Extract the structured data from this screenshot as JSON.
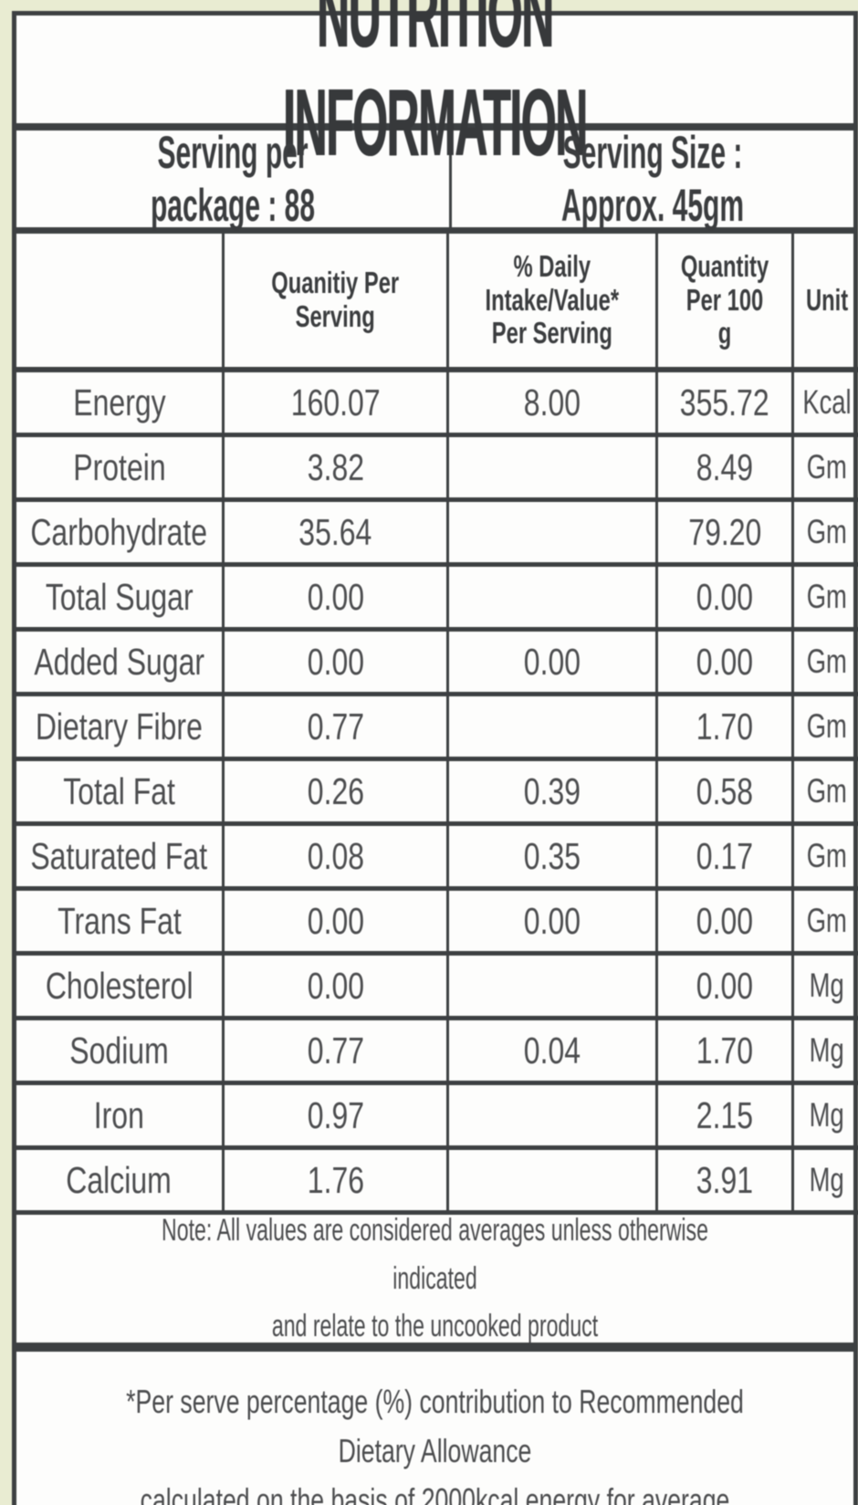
{
  "title": "NUTRITION INFORMATION",
  "serving": {
    "per_package": "Serving per package : 88",
    "size": "Serving Size : Approx. 45gm"
  },
  "table": {
    "headers": [
      "",
      "Quanitiy Per\nServing",
      "% Daily\nIntake/Value*\nPer Serving",
      "Quantity\nPer 100 g",
      "Unit"
    ],
    "rows": [
      {
        "nutrient": "Energy",
        "per_serving": "160.07",
        "daily_value": "8.00",
        "per_100g": "355.72",
        "unit": "Kcal"
      },
      {
        "nutrient": "Protein",
        "per_serving": "3.82",
        "daily_value": "",
        "per_100g": "8.49",
        "unit": "Gm"
      },
      {
        "nutrient": "Carbohydrate",
        "per_serving": "35.64",
        "daily_value": "",
        "per_100g": "79.20",
        "unit": "Gm"
      },
      {
        "nutrient": "Total Sugar",
        "per_serving": "0.00",
        "daily_value": "",
        "per_100g": "0.00",
        "unit": "Gm"
      },
      {
        "nutrient": "Added Sugar",
        "per_serving": "0.00",
        "daily_value": "0.00",
        "per_100g": "0.00",
        "unit": "Gm"
      },
      {
        "nutrient": "Dietary Fibre",
        "per_serving": "0.77",
        "daily_value": "",
        "per_100g": "1.70",
        "unit": "Gm"
      },
      {
        "nutrient": "Total Fat",
        "per_serving": "0.26",
        "daily_value": "0.39",
        "per_100g": "0.58",
        "unit": "Gm"
      },
      {
        "nutrient": "Saturated Fat",
        "per_serving": "0.08",
        "daily_value": "0.35",
        "per_100g": "0.17",
        "unit": "Gm"
      },
      {
        "nutrient": "Trans Fat",
        "per_serving": "0.00",
        "daily_value": "0.00",
        "per_100g": "0.00",
        "unit": "Gm"
      },
      {
        "nutrient": "Cholesterol",
        "per_serving": "0.00",
        "daily_value": "",
        "per_100g": "0.00",
        "unit": "Mg"
      },
      {
        "nutrient": "Sodium",
        "per_serving": "0.77",
        "daily_value": "0.04",
        "per_100g": "1.70",
        "unit": "Mg"
      },
      {
        "nutrient": "Iron",
        "per_serving": "0.97",
        "daily_value": "",
        "per_100g": "2.15",
        "unit": "Mg"
      },
      {
        "nutrient": "Calcium",
        "per_serving": "1.76",
        "daily_value": "",
        "per_100g": "3.91",
        "unit": "Mg"
      }
    ]
  },
  "notes": {
    "note": "Note: All values are considered averages unless otherwise indicated\nand relate to the uncooked product",
    "footnote": "*Per serve percentage (%) contribution to Recommended Dietary Allowance\ncalculated on the basis of 2000kcal energy for average adult per day."
  },
  "colors": {
    "page_margin": "#e9ecd2",
    "cell_background": "#fdfdfc",
    "border": "#3d4042",
    "text": "#4c4d4f"
  }
}
